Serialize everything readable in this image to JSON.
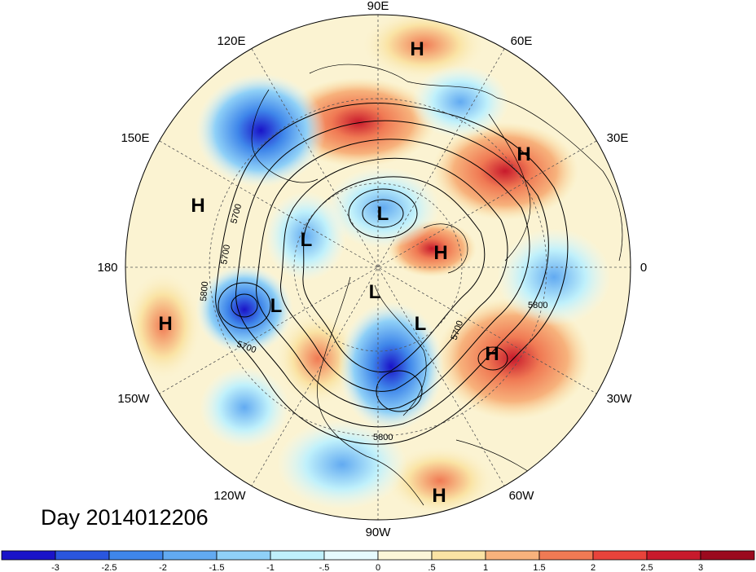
{
  "title": "Day 2014012206",
  "longitude_labels": [
    "90E",
    "60E",
    "30E",
    "0",
    "30W",
    "60W",
    "90W",
    "120W",
    "150W",
    "180",
    "150E",
    "120E"
  ],
  "pressure_centers": [
    {
      "label": "H",
      "name": "high-center"
    },
    {
      "label": "H",
      "name": "high-center"
    },
    {
      "label": "H",
      "name": "high-center"
    },
    {
      "label": "H",
      "name": "high-center"
    },
    {
      "label": "H",
      "name": "high-center"
    },
    {
      "label": "H",
      "name": "high-center"
    },
    {
      "label": "H",
      "name": "high-center"
    },
    {
      "label": "L",
      "name": "low-center"
    },
    {
      "label": "L",
      "name": "low-center"
    },
    {
      "label": "L",
      "name": "low-center"
    },
    {
      "label": "L",
      "name": "low-center"
    },
    {
      "label": "L",
      "name": "low-center"
    }
  ],
  "contour_labels": [
    "5700",
    "5700",
    "5800",
    "5700",
    "5800",
    "5700",
    "5800"
  ],
  "colorbar": {
    "ticks": [
      "-3",
      "-2.5",
      "-2",
      "-1.5",
      "-1",
      "-.5",
      "0",
      ".5",
      "1",
      "1.5",
      "2",
      "2.5",
      "3"
    ],
    "colors": [
      "#1a13c8",
      "#2a56de",
      "#3f86ea",
      "#62aaf1",
      "#8fd0f7",
      "#bff0fb",
      "#e6fafd",
      "#fbf6d8",
      "#fae3a4",
      "#f7b27c",
      "#f07a54",
      "#e8433b",
      "#c81a2c",
      "#9b0a1e"
    ]
  }
}
